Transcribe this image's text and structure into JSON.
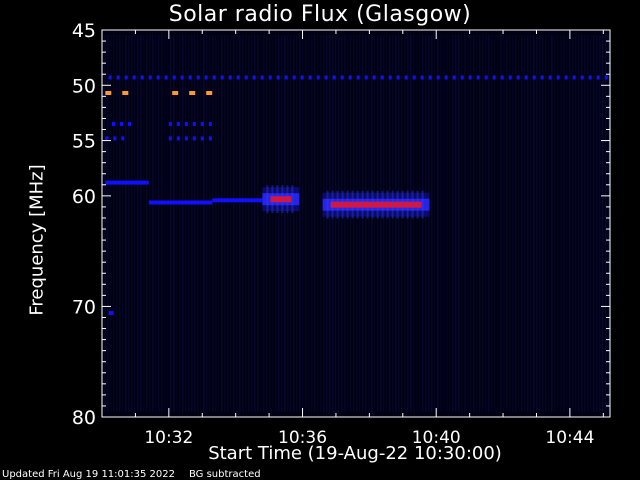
{
  "chart_data": {
    "type": "heatmap",
    "title": "Solar radio Flux (Glasgow)",
    "xlabel": "Start Time (19-Aug-22 10:30:00)",
    "ylabel": "Frequency [MHz]",
    "x_ticks": [
      "10:32",
      "10:36",
      "10:40",
      "10:44"
    ],
    "x_tick_minutes": [
      2,
      6,
      10,
      14
    ],
    "xlim_minutes": [
      0,
      15.2
    ],
    "y_ticks": [
      45,
      50,
      55,
      60,
      70,
      80
    ],
    "ylim": [
      45,
      80
    ],
    "colormap": [
      "#000033",
      "#1010ff",
      "#ff0000",
      "#ff9933"
    ],
    "features": [
      {
        "name": "tone-49.3",
        "freq": 49.3,
        "t0": 0.2,
        "t1": 15.1,
        "level": 0.45,
        "dotted": true
      },
      {
        "name": "tone-50.7",
        "freq": 50.7,
        "t0": 0.1,
        "t1": 0.8,
        "level": 0.95,
        "dotted": true
      },
      {
        "name": "tone-50.7b",
        "freq": 50.7,
        "t0": 2.1,
        "t1": 3.3,
        "level": 0.95,
        "dotted": true
      },
      {
        "name": "tone-53.5",
        "freq": 53.5,
        "t0": 0.3,
        "t1": 0.8,
        "level": 0.35,
        "dotted": true
      },
      {
        "name": "tone-53.5b",
        "freq": 53.5,
        "t0": 2.0,
        "t1": 3.3,
        "level": 0.35,
        "dotted": true
      },
      {
        "name": "tone-54.8",
        "freq": 54.8,
        "t0": 0.1,
        "t1": 0.8,
        "level": 0.5,
        "dotted": true
      },
      {
        "name": "tone-54.8b",
        "freq": 54.8,
        "t0": 2.0,
        "t1": 3.3,
        "level": 0.5,
        "dotted": true
      },
      {
        "name": "line-58.8",
        "freq": 58.8,
        "t0": 0.1,
        "t1": 1.4,
        "level": 0.35,
        "dotted": false
      },
      {
        "name": "drift-60.6",
        "freq": 60.6,
        "t0": 1.4,
        "t1": 3.3,
        "level": 0.35,
        "dotted": false
      },
      {
        "name": "drift-60.4",
        "freq": 60.4,
        "t0": 3.3,
        "t1": 4.8,
        "level": 0.45,
        "dotted": false
      },
      {
        "name": "tone-70.6",
        "freq": 70.6,
        "t0": 0.2,
        "t1": 0.35,
        "level": 0.7,
        "dotted": false
      }
    ],
    "bursts": [
      {
        "name": "burst-1",
        "freq": 60.3,
        "t0": 4.8,
        "t1": 5.9,
        "level": 0.85
      },
      {
        "name": "burst-2",
        "freq": 60.8,
        "t0": 6.6,
        "t1": 9.8,
        "level": 0.95
      }
    ]
  },
  "footer": {
    "updated": "Updated Fri Aug 19 11:01:35 2022",
    "note": "BG subtracted"
  }
}
